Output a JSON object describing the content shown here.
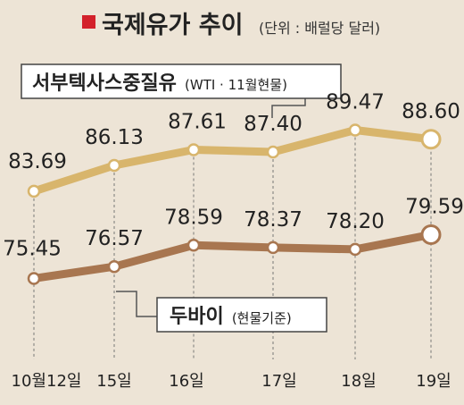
{
  "title": "국제유가 추이",
  "unit": "(단위 : 배럴당 달러)",
  "colors": {
    "background": "#ede4d6",
    "title_marker": "#d3212b",
    "wti_line": "#d8b56c",
    "dubai_line": "#a87650",
    "guide": "#777777"
  },
  "chart_data": {
    "type": "line",
    "categories": [
      "10월12일",
      "15일",
      "16일",
      "17일",
      "18일",
      "19일"
    ],
    "series": [
      {
        "name": "서부텍사스중질유",
        "name_sub": "(WTI · 11월현물)",
        "values": [
          83.69,
          86.13,
          87.61,
          87.4,
          89.47,
          88.6
        ]
      },
      {
        "name": "두바이",
        "name_sub": "(현물기준)",
        "values": [
          75.45,
          76.57,
          78.59,
          78.37,
          78.2,
          79.59
        ]
      }
    ],
    "ylim": [
      70,
      95
    ],
    "grid": false,
    "legend": "inline labels"
  }
}
